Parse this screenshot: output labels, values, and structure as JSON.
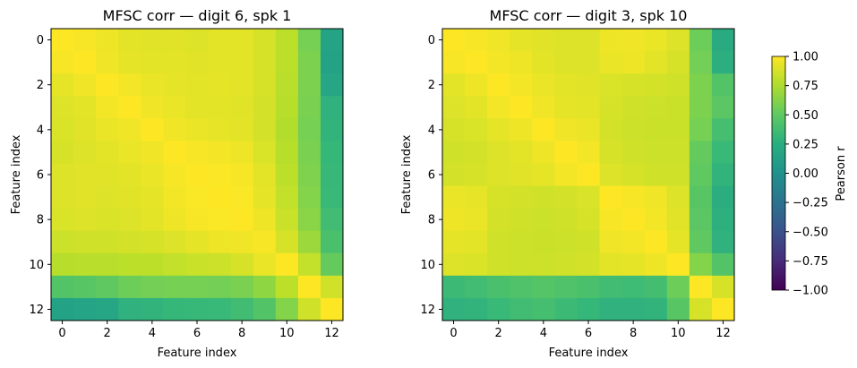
{
  "chart_data": [
    {
      "type": "heatmap",
      "title": "MFSC corr — digit 6, spk 1",
      "xlabel": "Feature index",
      "ylabel": "Feature index",
      "x_ticks": [
        "0",
        "2",
        "4",
        "6",
        "8",
        "10",
        "12"
      ],
      "y_ticks": [
        "0",
        "2",
        "4",
        "6",
        "8",
        "10",
        "12"
      ],
      "size": 13,
      "vmin": -1,
      "vmax": 1,
      "colormap": "viridis",
      "matrix": [
        [
          1.0,
          0.98,
          0.95,
          0.92,
          0.91,
          0.91,
          0.9,
          0.92,
          0.92,
          0.88,
          0.8,
          0.58,
          0.16
        ],
        [
          0.98,
          1.0,
          0.96,
          0.93,
          0.92,
          0.92,
          0.91,
          0.92,
          0.92,
          0.88,
          0.8,
          0.6,
          0.15
        ],
        [
          0.93,
          0.96,
          1.0,
          0.97,
          0.94,
          0.93,
          0.92,
          0.93,
          0.92,
          0.88,
          0.79,
          0.6,
          0.18
        ],
        [
          0.9,
          0.92,
          0.97,
          1.0,
          0.96,
          0.94,
          0.92,
          0.92,
          0.91,
          0.87,
          0.78,
          0.59,
          0.28
        ],
        [
          0.89,
          0.91,
          0.94,
          0.96,
          1.0,
          0.96,
          0.94,
          0.93,
          0.92,
          0.87,
          0.77,
          0.58,
          0.3
        ],
        [
          0.88,
          0.9,
          0.92,
          0.94,
          0.96,
          1.0,
          0.98,
          0.97,
          0.95,
          0.89,
          0.78,
          0.59,
          0.33
        ],
        [
          0.9,
          0.91,
          0.91,
          0.92,
          0.94,
          0.98,
          1.0,
          0.99,
          0.98,
          0.92,
          0.8,
          0.61,
          0.34
        ],
        [
          0.9,
          0.91,
          0.9,
          0.91,
          0.93,
          0.97,
          0.99,
          1.0,
          0.99,
          0.93,
          0.82,
          0.62,
          0.35
        ],
        [
          0.89,
          0.9,
          0.89,
          0.9,
          0.92,
          0.95,
          0.98,
          0.99,
          1.0,
          0.95,
          0.84,
          0.64,
          0.38
        ],
        [
          0.85,
          0.86,
          0.86,
          0.87,
          0.88,
          0.9,
          0.93,
          0.95,
          0.96,
          0.98,
          0.88,
          0.7,
          0.42
        ],
        [
          0.78,
          0.79,
          0.79,
          0.8,
          0.8,
          0.82,
          0.84,
          0.85,
          0.88,
          0.94,
          1.0,
          0.82,
          0.52
        ],
        [
          0.45,
          0.47,
          0.5,
          0.55,
          0.57,
          0.58,
          0.58,
          0.57,
          0.59,
          0.66,
          0.8,
          1.0,
          0.86
        ],
        [
          0.15,
          0.17,
          0.18,
          0.28,
          0.3,
          0.33,
          0.34,
          0.35,
          0.38,
          0.45,
          0.62,
          0.86,
          1.0
        ]
      ]
    },
    {
      "type": "heatmap",
      "title": "MFSC corr — digit 3, spk 10",
      "xlabel": "Feature index",
      "ylabel": "Feature index",
      "x_ticks": [
        "0",
        "2",
        "4",
        "6",
        "8",
        "10",
        "12"
      ],
      "y_ticks": [
        "0",
        "2",
        "4",
        "6",
        "8",
        "10",
        "12"
      ],
      "size": 13,
      "vmin": -1,
      "vmax": 1,
      "colormap": "viridis",
      "matrix": [
        [
          1.0,
          0.98,
          0.96,
          0.93,
          0.91,
          0.9,
          0.9,
          0.95,
          0.96,
          0.94,
          0.9,
          0.55,
          0.22
        ],
        [
          0.98,
          1.0,
          0.97,
          0.95,
          0.92,
          0.9,
          0.9,
          0.94,
          0.95,
          0.92,
          0.88,
          0.57,
          0.25
        ],
        [
          0.92,
          0.95,
          1.0,
          0.97,
          0.94,
          0.92,
          0.91,
          0.89,
          0.88,
          0.87,
          0.86,
          0.6,
          0.45
        ],
        [
          0.9,
          0.92,
          0.97,
          1.0,
          0.96,
          0.93,
          0.92,
          0.88,
          0.86,
          0.85,
          0.84,
          0.6,
          0.48
        ],
        [
          0.88,
          0.89,
          0.93,
          0.95,
          1.0,
          0.96,
          0.94,
          0.87,
          0.85,
          0.84,
          0.84,
          0.58,
          0.4
        ],
        [
          0.86,
          0.87,
          0.9,
          0.92,
          0.95,
          1.0,
          0.97,
          0.88,
          0.86,
          0.85,
          0.85,
          0.52,
          0.35
        ],
        [
          0.87,
          0.88,
          0.9,
          0.91,
          0.93,
          0.97,
          1.0,
          0.9,
          0.88,
          0.86,
          0.86,
          0.5,
          0.3
        ],
        [
          0.94,
          0.93,
          0.88,
          0.87,
          0.86,
          0.87,
          0.89,
          1.0,
          0.98,
          0.96,
          0.9,
          0.47,
          0.24
        ],
        [
          0.95,
          0.94,
          0.87,
          0.86,
          0.85,
          0.86,
          0.88,
          0.98,
          1.0,
          0.97,
          0.91,
          0.48,
          0.26
        ],
        [
          0.93,
          0.92,
          0.86,
          0.85,
          0.84,
          0.85,
          0.86,
          0.96,
          0.97,
          1.0,
          0.93,
          0.5,
          0.28
        ],
        [
          0.9,
          0.89,
          0.86,
          0.85,
          0.85,
          0.86,
          0.87,
          0.92,
          0.93,
          0.95,
          1.0,
          0.62,
          0.45
        ],
        [
          0.36,
          0.38,
          0.42,
          0.44,
          0.46,
          0.44,
          0.42,
          0.38,
          0.37,
          0.39,
          0.55,
          1.0,
          0.88
        ],
        [
          0.28,
          0.3,
          0.35,
          0.38,
          0.4,
          0.36,
          0.33,
          0.28,
          0.28,
          0.3,
          0.47,
          0.88,
          1.0
        ]
      ]
    }
  ],
  "colorbar": {
    "label": "Pearson r",
    "min": -1,
    "max": 1,
    "ticks": [
      "1.00",
      "0.75",
      "0.50",
      "0.25",
      "0.00",
      "−0.25",
      "−0.50",
      "−0.75",
      "−1.00"
    ]
  }
}
